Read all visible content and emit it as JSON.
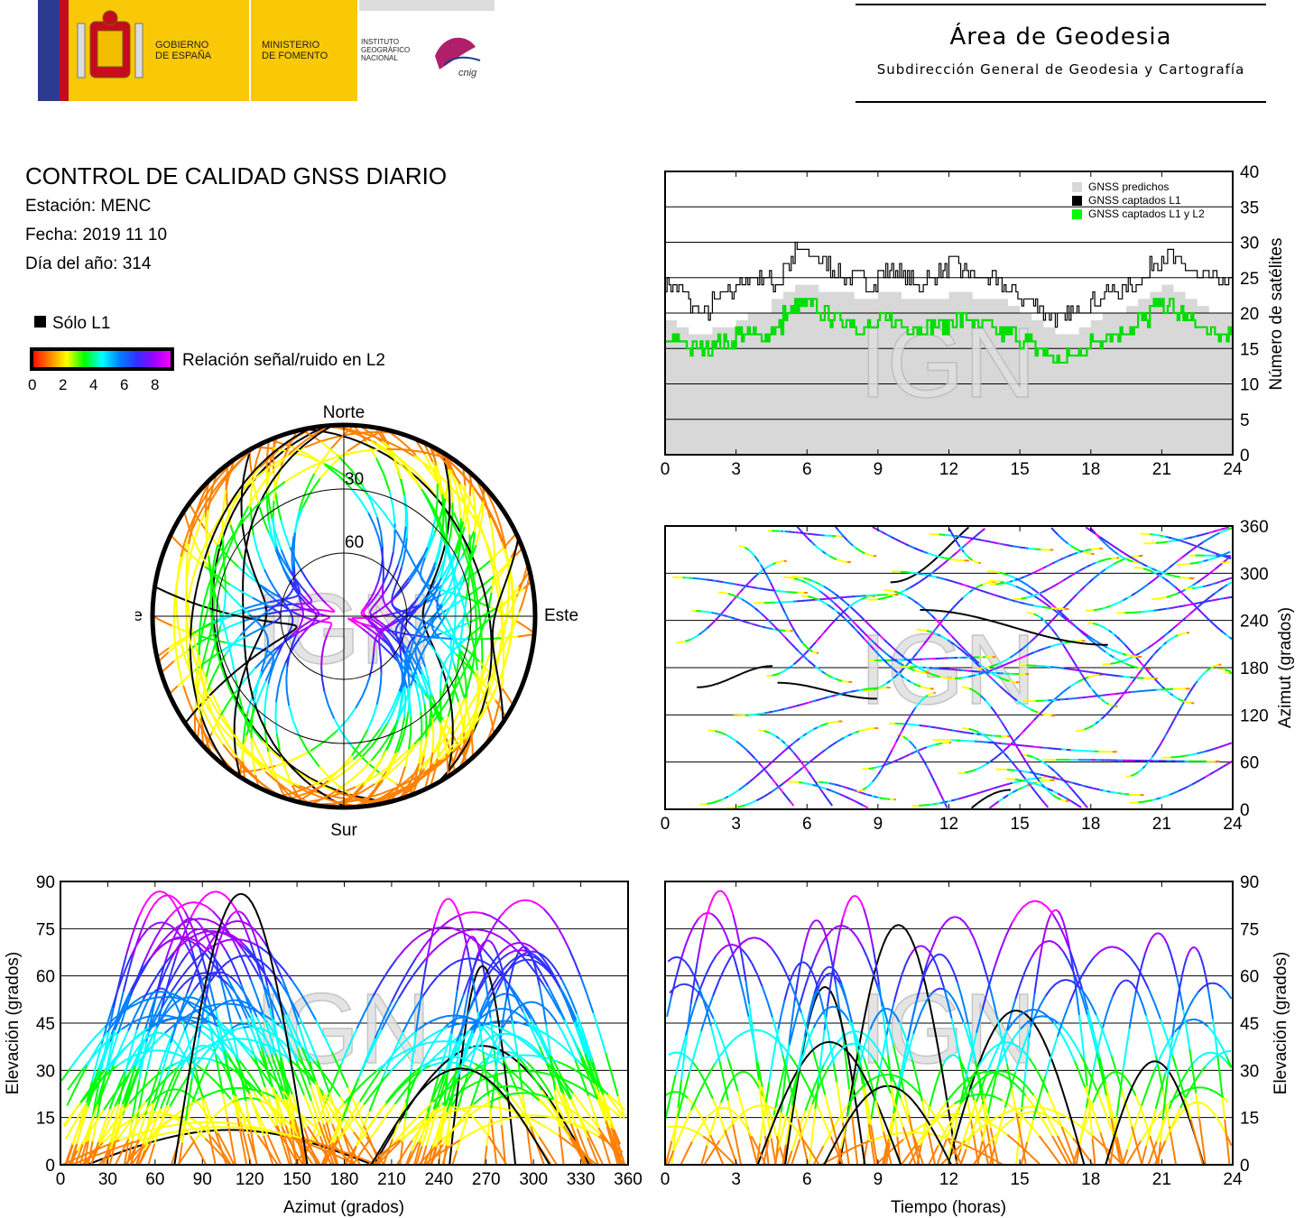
{
  "header": {
    "logo": {
      "gobierno": [
        "GOBIERNO",
        "DE ESPAÑA"
      ],
      "ministerio": [
        "MINISTERIO",
        "DE FOMENTO"
      ],
      "instituto": [
        "INSTITUTO",
        "GEOGRÁFICO",
        "NACIONAL"
      ],
      "cnig": "cnig"
    },
    "area_title": "Área de Geodesia",
    "area_subtitle": "Subdirección General de Geodesia y Cartografía"
  },
  "info": {
    "title": "CONTROL DE CALIDAD GNSS DIARIO",
    "station": "Estación: MENC",
    "date": "Fecha: 2019 11 10",
    "doy": "Día del año: 314"
  },
  "legend": {
    "solo_l1": "Sólo L1",
    "snr_label": "Relación señal/ruido en L2",
    "snr_ticks": [
      "0",
      "2",
      "4",
      "6",
      "8"
    ],
    "snr_colors": [
      "#ff0000",
      "#ff8000",
      "#ffff00",
      "#00ff00",
      "#00ffff",
      "#0080ff",
      "#3030ff",
      "#a000ff",
      "#ff00ff"
    ]
  },
  "watermark": "IGN",
  "colors": {
    "predicted": "#d8d8d8",
    "l1": "#000000",
    "l1l2": "#00dd00"
  },
  "chart_data": [
    {
      "id": "satellites",
      "type": "area",
      "x": [
        0,
        0.5,
        1,
        1.5,
        2,
        2.5,
        3,
        3.5,
        4,
        4.5,
        5,
        5.5,
        6,
        6.5,
        7,
        7.5,
        8,
        8.5,
        9,
        9.5,
        10,
        10.5,
        11,
        11.5,
        12,
        12.5,
        13,
        13.5,
        14,
        14.5,
        15,
        15.5,
        16,
        16.5,
        17,
        17.5,
        18,
        18.5,
        19,
        19.5,
        20,
        20.5,
        21,
        21.5,
        22,
        22.5,
        23,
        23.5,
        24
      ],
      "series": [
        {
          "name": "GNSS predichos",
          "values": [
            19,
            18,
            17,
            17,
            18,
            18,
            19,
            20,
            20,
            22,
            23,
            24,
            24,
            23,
            23,
            23,
            22,
            22,
            23,
            23,
            22,
            22,
            22,
            22,
            23,
            23,
            22,
            22,
            22,
            21,
            20,
            19,
            18,
            17,
            17,
            18,
            19,
            20,
            20,
            21,
            22,
            23,
            24,
            23,
            22,
            21,
            20,
            20,
            20
          ]
        },
        {
          "name": "GNSS captados L1",
          "values": [
            24,
            23,
            21,
            20,
            22,
            23,
            24,
            25,
            25,
            24,
            27,
            29,
            28,
            27,
            26,
            25,
            25,
            24,
            26,
            26,
            25,
            24,
            25,
            26,
            27,
            26,
            25,
            25,
            24,
            23,
            22,
            21,
            20,
            19,
            20,
            21,
            22,
            23,
            23,
            24,
            25,
            27,
            28,
            27,
            26,
            25,
            25,
            24,
            23
          ]
        },
        {
          "name": "GNSS captados L1 y L2",
          "values": [
            16,
            16,
            15,
            15,
            16,
            16,
            17,
            17,
            17,
            18,
            20,
            21,
            21,
            20,
            19,
            19,
            18,
            18,
            19,
            19,
            18,
            18,
            18,
            18,
            19,
            19,
            18,
            18,
            17,
            17,
            16,
            15,
            14,
            13,
            14,
            15,
            16,
            17,
            17,
            18,
            19,
            21,
            21,
            20,
            19,
            18,
            17,
            17,
            17
          ]
        }
      ],
      "xlim": [
        0,
        24
      ],
      "ylim": [
        0,
        40
      ],
      "xticks": [
        "0",
        "3",
        "6",
        "9",
        "12",
        "15",
        "18",
        "21",
        "24"
      ],
      "yticks": [
        "0",
        "5",
        "10",
        "15",
        "20",
        "25",
        "30",
        "35",
        "40"
      ],
      "ylabel": "Número de satélites",
      "legend_position": "top-right"
    },
    {
      "id": "azimuth-time",
      "type": "scatter",
      "xlim": [
        0,
        24
      ],
      "ylim": [
        0,
        360
      ],
      "xticks": [
        "0",
        "3",
        "6",
        "9",
        "12",
        "15",
        "18",
        "21",
        "24"
      ],
      "yticks": [
        "0",
        "60",
        "120",
        "180",
        "240",
        "300",
        "360"
      ],
      "ylabel": "Azimut (grados)"
    },
    {
      "id": "elevation-azimuth",
      "type": "scatter",
      "xlim": [
        0,
        360
      ],
      "ylim": [
        0,
        90
      ],
      "xticks": [
        "0",
        "30",
        "60",
        "90",
        "120",
        "150",
        "180",
        "210",
        "240",
        "270",
        "300",
        "330",
        "360"
      ],
      "yticks": [
        "0",
        "15",
        "30",
        "45",
        "60",
        "75",
        "90"
      ],
      "xlabel": "Azimut (grados)",
      "ylabel": "Elevación (grados)"
    },
    {
      "id": "elevation-time",
      "type": "scatter",
      "xlim": [
        0,
        24
      ],
      "ylim": [
        0,
        90
      ],
      "xticks": [
        "0",
        "3",
        "6",
        "9",
        "12",
        "15",
        "18",
        "21",
        "24"
      ],
      "yticks": [
        "0",
        "15",
        "30",
        "45",
        "60",
        "75",
        "90"
      ],
      "xlabel": "Tiempo (horas)",
      "ylabel": "Elevación (grados)"
    },
    {
      "id": "skyplot",
      "type": "scatter",
      "ring_labels": [
        "30",
        "60"
      ],
      "directions": {
        "north": "Norte",
        "south": "Sur",
        "east": "Este",
        "west": "Oeste"
      }
    }
  ]
}
